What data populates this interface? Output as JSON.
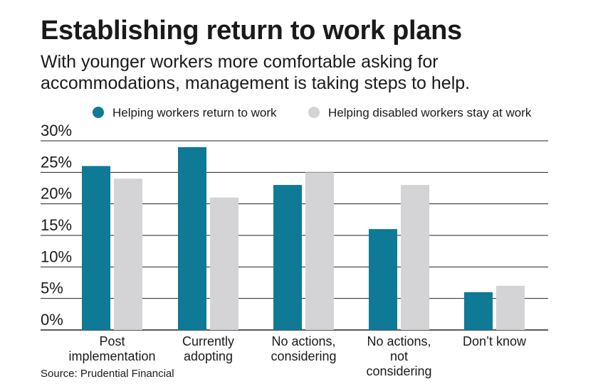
{
  "title": "Establishing return to work plans",
  "subtitle": "With younger workers more comfortable asking for accommodations, management is taking steps to help.",
  "source": "Source: Prudential Financial",
  "colors": {
    "series1": "#0e7a96",
    "series2": "#d4d3d5",
    "axis": "#222222",
    "grid": "#222222"
  },
  "chart_data": {
    "type": "bar",
    "title": "",
    "xlabel": "",
    "ylabel": "",
    "categories": [
      [
        "Post",
        "implementation"
      ],
      [
        "Currently",
        "adopting"
      ],
      [
        "No actions,",
        "considering"
      ],
      [
        "No actions,",
        "not",
        "considering"
      ],
      [
        "Don’t know"
      ]
    ],
    "series": [
      {
        "name": "Helping workers return to work",
        "values": [
          26,
          29,
          23,
          16,
          6
        ]
      },
      {
        "name": "Helping disabled workers stay at work",
        "values": [
          24,
          21,
          25,
          23,
          7
        ]
      }
    ],
    "ylim": [
      0,
      30
    ],
    "yticks": [
      "0%",
      "5%",
      "10%",
      "15%",
      "20%",
      "25%",
      "30%"
    ],
    "ytick_values": [
      0,
      5,
      10,
      15,
      20,
      25,
      30
    ],
    "grid": true,
    "legend_position": "top"
  }
}
